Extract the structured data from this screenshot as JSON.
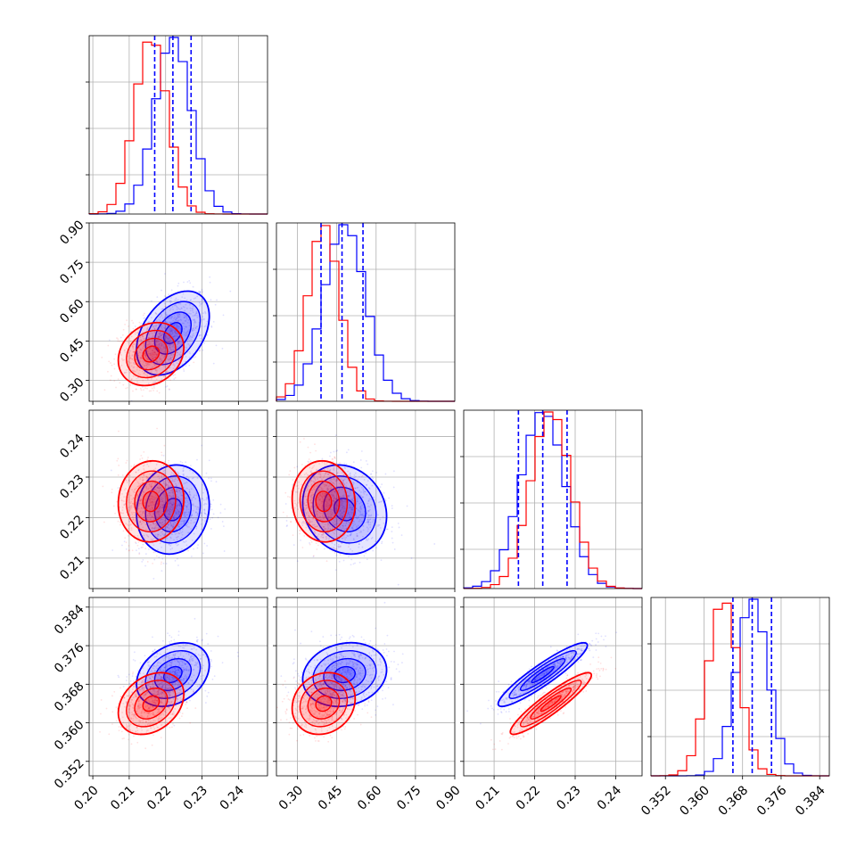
{
  "chart_data": {
    "type": "corner",
    "grid": true,
    "colors": {
      "blue": "#0000ff",
      "red": "#ff0000"
    },
    "parameters": [
      {
        "ticks": [
          0.2,
          0.21,
          0.22,
          0.23,
          0.24
        ],
        "tick_labels": [
          "0.20",
          "0.21",
          "0.22",
          "0.23",
          "0.24"
        ],
        "range": [
          0.199,
          0.248
        ]
      },
      {
        "ticks": [
          0.3,
          0.45,
          0.6,
          0.75,
          0.9
        ],
        "tick_labels": [
          "0.30",
          "0.45",
          "0.60",
          "0.75",
          "0.90"
        ],
        "range": [
          0.22,
          0.9
        ]
      },
      {
        "ticks": [
          0.21,
          0.22,
          0.23,
          0.24
        ],
        "tick_labels": [
          "0.21",
          "0.22",
          "0.23",
          "0.24"
        ],
        "range": [
          0.2025,
          0.2465
        ]
      },
      {
        "ticks": [
          0.352,
          0.36,
          0.368,
          0.376,
          0.384
        ],
        "tick_labels": [
          "0.352",
          "0.360",
          "0.368",
          "0.376",
          "0.384"
        ],
        "range": [
          0.349,
          0.386
        ]
      }
    ],
    "series": [
      {
        "color": "blue",
        "mean": [
          0.222,
          0.48,
          0.222,
          0.37
        ],
        "sd": [
          0.005,
          0.08,
          0.0055,
          0.0033
        ],
        "quantiles": [
          [
            0.217,
            0.222,
            0.227
          ],
          [
            0.39,
            0.47,
            0.55
          ],
          [
            0.216,
            0.222,
            0.228
          ],
          [
            0.366,
            0.37,
            0.374
          ]
        ]
      },
      {
        "color": "red",
        "mean": [
          0.216,
          0.4,
          0.224,
          0.364
        ],
        "sd": [
          0.0045,
          0.06,
          0.005,
          0.0032
        ],
        "quantiles": [],
        "shift_vs_blue": []
      }
    ],
    "correlations": {
      "0-1": [
        0.4,
        0.2
      ],
      "0-2": [
        0.1,
        0.05
      ],
      "1-2": [
        -0.15,
        -0.05
      ],
      "0-3": [
        0.3,
        0.3
      ],
      "1-3": [
        0.15,
        0.15
      ],
      "2-3": [
        0.92,
        0.92
      ]
    }
  }
}
